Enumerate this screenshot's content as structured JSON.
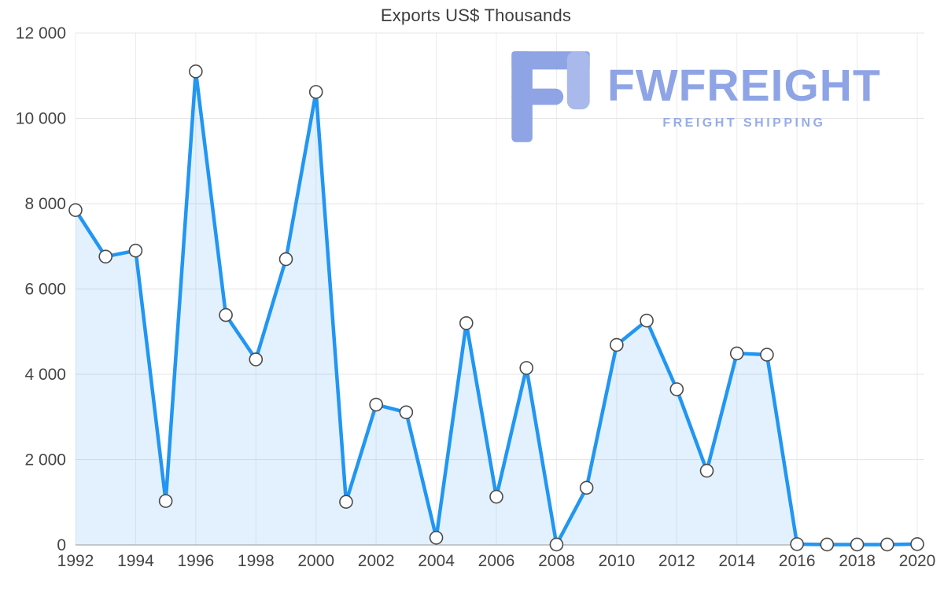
{
  "title": "Exports US$ Thousands",
  "watermark": {
    "brand": "FWFREIGHT",
    "tagline": "FREIGHT SHIPPING",
    "color": "#8aa0e4",
    "color_light": "#a5b6ec"
  },
  "chart_data": {
    "type": "area",
    "title": "Exports US$ Thousands",
    "x": [
      1992,
      1993,
      1994,
      1995,
      1996,
      1997,
      1998,
      1999,
      2000,
      2001,
      2002,
      2003,
      2004,
      2005,
      2006,
      2007,
      2008,
      2009,
      2010,
      2011,
      2012,
      2013,
      2014,
      2015,
      2016,
      2017,
      2018,
      2019,
      2020
    ],
    "values": [
      7850,
      6760,
      6900,
      1030,
      11100,
      5390,
      4350,
      6700,
      10620,
      1010,
      3290,
      3110,
      170,
      5200,
      1130,
      4150,
      10,
      1340,
      4690,
      5260,
      3650,
      1740,
      4490,
      4460,
      20,
      10,
      10,
      10,
      20
    ],
    "xlabel": "",
    "ylabel": "",
    "ylim": [
      0,
      12000
    ],
    "y_ticks": [
      {
        "value": 0,
        "label": "0"
      },
      {
        "value": 2000,
        "label": "2 000"
      },
      {
        "value": 4000,
        "label": "4 000"
      },
      {
        "value": 6000,
        "label": "6 000"
      },
      {
        "value": 8000,
        "label": "8 000"
      },
      {
        "value": 10000,
        "label": "10 000"
      },
      {
        "value": 12000,
        "label": "12 000"
      }
    ],
    "x_tick_labels": [
      "1992",
      "1994",
      "1996",
      "1998",
      "2000",
      "2002",
      "2004",
      "2006",
      "2008",
      "2010",
      "2012",
      "2014",
      "2016",
      "2018",
      "2020"
    ],
    "grid": true,
    "legend": false,
    "line_color": "#2196f3",
    "area_opacity": 0.13,
    "marker_fill": "#ffffff",
    "marker_stroke": "#4a4a4a"
  }
}
